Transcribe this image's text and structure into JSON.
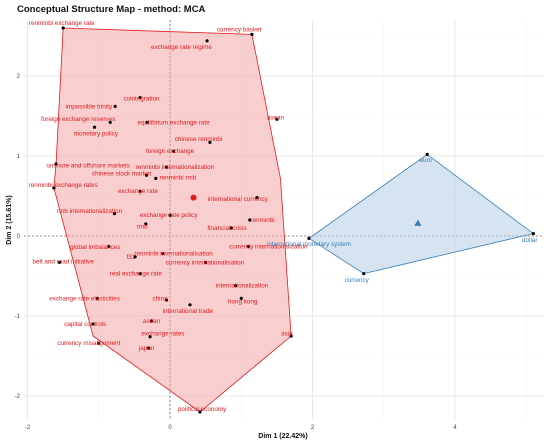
{
  "chart_data": {
    "type": "scatter",
    "title": "Conceptual Structure Map - method: MCA",
    "xlabel": "Dim 1 (22.42%)",
    "ylabel": "Dim 2 (15.61%)",
    "xlim": [
      -2.05,
      5.25
    ],
    "ylim": [
      -2.3,
      2.7
    ],
    "xticks": [
      -2,
      0,
      2,
      4
    ],
    "yticks": [
      -2,
      -1,
      0,
      1,
      2
    ],
    "grid": true,
    "legend": "none",
    "colors": {
      "cluster1": "#e41a1c",
      "cluster2": "#377eb8"
    },
    "clusters": [
      {
        "id": 1,
        "color": "#e41a1c",
        "hull_fill": "#f4a6a6",
        "centroid": [
          0.33,
          0.48
        ],
        "hull": [
          [
            -1.5,
            2.6
          ],
          [
            1.15,
            2.52
          ],
          [
            1.55,
            0.72
          ],
          [
            1.7,
            -1.25
          ],
          [
            0.42,
            -2.2
          ],
          [
            -1.08,
            -1.25
          ],
          [
            -1.63,
            0.6
          ],
          [
            -1.6,
            0.9
          ]
        ],
        "points": [
          {
            "label": "renminbi exchange rate",
            "x": -1.5,
            "y": 2.6,
            "lx": -1.52,
            "ly": 2.66
          },
          {
            "label": "currency basket",
            "x": 1.15,
            "y": 2.52,
            "lx": 0.97,
            "ly": 2.58
          },
          {
            "label": "exchange rate regime",
            "x": 0.52,
            "y": 2.44,
            "lx": 0.16,
            "ly": 2.36
          },
          {
            "label": "cointegration",
            "x": -0.42,
            "y": 1.73,
            "lx": -0.4,
            "ly": 1.72
          },
          {
            "label": "impossible trinity",
            "x": -0.77,
            "y": 1.62,
            "lx": -1.14,
            "ly": 1.62
          },
          {
            "label": "asean",
            "x": 1.5,
            "y": 1.46,
            "lx": 1.48,
            "ly": 1.48
          },
          {
            "label": "foreign exchange reserves",
            "x": -0.84,
            "y": 1.42,
            "lx": -1.29,
            "ly": 1.46
          },
          {
            "label": "equilibrium exchange rate",
            "x": -0.32,
            "y": 1.42,
            "lx": 0.05,
            "ly": 1.42
          },
          {
            "label": "monetary policy",
            "x": -1.06,
            "y": 1.36,
            "lx": -1.04,
            "ly": 1.28
          },
          {
            "label": "chinese renminbi",
            "x": 0.56,
            "y": 1.17,
            "lx": 0.4,
            "ly": 1.21
          },
          {
            "label": "foreign exchange",
            "x": 0.05,
            "y": 1.06,
            "lx": 0.0,
            "ly": 1.06
          },
          {
            "label": "onshore and offshore markets",
            "x": -1.6,
            "y": 0.9,
            "lx": -1.15,
            "ly": 0.88
          },
          {
            "label": "renminbi exchange rates",
            "x": -1.63,
            "y": 0.6,
            "lx": -1.5,
            "ly": 0.64
          },
          {
            "label": "renminbi internationalization",
            "x": -0.05,
            "y": 0.86,
            "lx": 0.07,
            "ly": 0.86
          },
          {
            "label": "renminbi  rmb",
            "x": -0.2,
            "y": 0.72,
            "lx": 0.11,
            "ly": 0.73
          },
          {
            "label": "chinese stock market",
            "x": -0.33,
            "y": 0.76,
            "lx": -0.68,
            "ly": 0.78
          },
          {
            "label": "exchange rate",
            "x": -0.42,
            "y": 0.56,
            "lx": -0.45,
            "ly": 0.56
          },
          {
            "label": "international currency",
            "x": 1.22,
            "y": 0.48,
            "lx": 0.95,
            "ly": 0.46
          },
          {
            "label": "rmb internationalization",
            "x": -0.78,
            "y": 0.28,
            "lx": -1.13,
            "ly": 0.31
          },
          {
            "label": "exchange rate policy",
            "x": 0.0,
            "y": 0.26,
            "lx": -0.02,
            "ly": 0.26
          },
          {
            "label": "renminbi",
            "x": 1.12,
            "y": 0.2,
            "lx": 1.3,
            "ly": 0.2
          },
          {
            "label": "rmb",
            "x": -0.34,
            "y": 0.15,
            "lx": -0.39,
            "ly": 0.12
          },
          {
            "label": "financial crisis",
            "x": 0.86,
            "y": 0.1,
            "lx": 0.8,
            "ly": 0.1
          },
          {
            "label": "global imbalances",
            "x": -0.86,
            "y": -0.13,
            "lx": -1.05,
            "ly": -0.14
          },
          {
            "label": "f31",
            "x": -0.49,
            "y": -0.26,
            "lx": -0.55,
            "ly": -0.26
          },
          {
            "label": "renminbi internationalisation",
            "x": -0.1,
            "y": -0.22,
            "lx": 0.05,
            "ly": -0.22
          },
          {
            "label": "currency internationalization",
            "x": 1.1,
            "y": -0.13,
            "lx": 1.38,
            "ly": -0.13
          },
          {
            "label": "belt and road initiative",
            "x": -1.55,
            "y": -0.33,
            "lx": -1.5,
            "ly": -0.32
          },
          {
            "label": "currency internationalisation",
            "x": 0.5,
            "y": -0.33,
            "lx": 0.49,
            "ly": -0.33
          },
          {
            "label": "real exchange rate",
            "x": -0.42,
            "y": -0.47,
            "lx": -0.48,
            "ly": -0.47
          },
          {
            "label": "internationalization",
            "x": 0.92,
            "y": -0.62,
            "lx": 1.01,
            "ly": -0.62
          },
          {
            "label": "exchange rate elasticities",
            "x": -1.02,
            "y": -0.78,
            "lx": -1.2,
            "ly": -0.78
          },
          {
            "label": "china",
            "x": -0.05,
            "y": -0.8,
            "lx": -0.14,
            "ly": -0.78
          },
          {
            "label": "hong kong",
            "x": 1.0,
            "y": -0.78,
            "lx": 1.02,
            "ly": -0.82
          },
          {
            "label": "international trade",
            "x": 0.28,
            "y": -0.86,
            "lx": 0.25,
            "ly": -0.94
          },
          {
            "label": "capital controls",
            "x": -1.08,
            "y": -1.1,
            "lx": -1.19,
            "ly": -1.1
          },
          {
            "label": "asean",
            "x": -0.26,
            "y": -1.06,
            "lx": -0.26,
            "ly": -1.06
          },
          {
            "label": "exchange rates",
            "x": -0.28,
            "y": -1.26,
            "lx": -0.1,
            "ly": -1.22
          },
          {
            "label": "asia",
            "x": 1.7,
            "y": -1.25,
            "lx": 1.64,
            "ly": -1.22
          },
          {
            "label": "currency misalignment",
            "x": -1.0,
            "y": -1.34,
            "lx": -1.14,
            "ly": -1.34
          },
          {
            "label": "japan",
            "x": -0.3,
            "y": -1.4,
            "lx": -0.33,
            "ly": -1.4
          },
          {
            "label": "political economy",
            "x": 0.42,
            "y": -2.2,
            "lx": 0.45,
            "ly": -2.16
          }
        ]
      },
      {
        "id": 2,
        "color": "#377eb8",
        "hull_fill": "#b3cde3",
        "centroid": [
          3.48,
          0.16
        ],
        "hull": [
          [
            3.61,
            1.02
          ],
          [
            5.1,
            0.03
          ],
          [
            2.72,
            -0.47
          ],
          [
            1.95,
            -0.03
          ]
        ],
        "points": [
          {
            "label": "euro",
            "x": 3.61,
            "y": 1.02,
            "lx": 3.59,
            "ly": 0.95
          },
          {
            "label": "dollar",
            "x": 5.1,
            "y": 0.03,
            "lx": 5.05,
            "ly": -0.05
          },
          {
            "label": "currency",
            "x": 2.72,
            "y": -0.47,
            "lx": 2.62,
            "ly": -0.55
          },
          {
            "label": "international monetary system",
            "x": 1.95,
            "y": -0.03,
            "lx": 1.95,
            "ly": -0.1
          }
        ]
      }
    ]
  }
}
